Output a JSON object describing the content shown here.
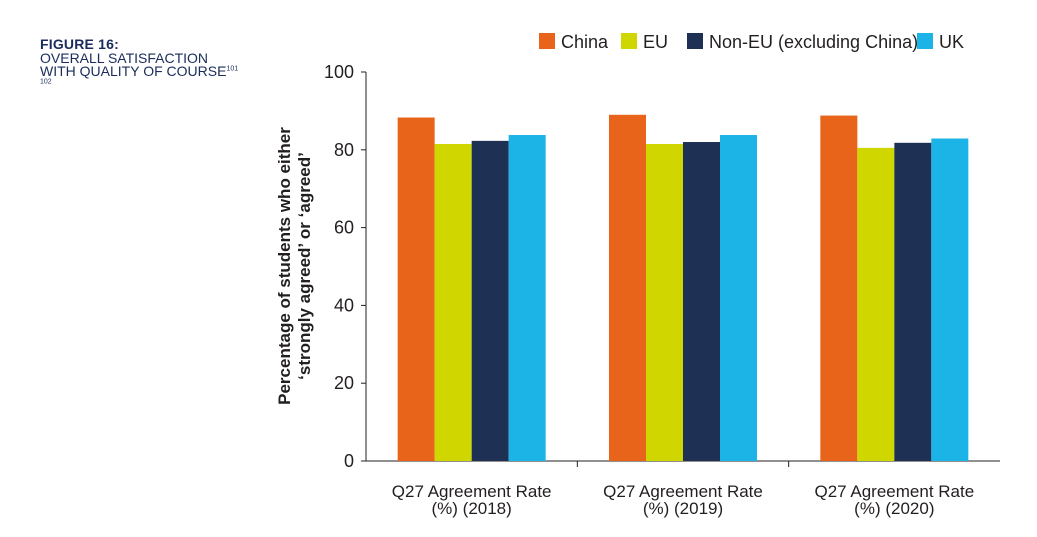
{
  "figure": {
    "label": "FIGURE 16:",
    "title": "OVERALL SATISFACTION WITH QUALITY OF COURSE",
    "footnotes": "101 102"
  },
  "colors": {
    "China": "#e8641b",
    "EU": "#cfd600",
    "Non-EU (excluding China)": "#1f3055",
    "UK": "#1cb4e6"
  },
  "chart_data": {
    "type": "bar",
    "title": "",
    "xlabel": "",
    "ylabel_lines": [
      "Percentage of students who either",
      "‘strongly agreed’ or ‘agreed’"
    ],
    "categories": [
      [
        "Q27 Agreement Rate",
        "(%) (2018)"
      ],
      [
        "Q27 Agreement Rate",
        "(%) (2019)"
      ],
      [
        "Q27 Agreement Rate",
        "(%) (2020)"
      ]
    ],
    "series": [
      {
        "name": "China",
        "values": [
          88.3,
          89.0,
          88.8
        ]
      },
      {
        "name": "EU",
        "values": [
          81.5,
          81.5,
          80.5
        ]
      },
      {
        "name": "Non-EU (excluding China)",
        "values": [
          82.3,
          82.0,
          81.8
        ]
      },
      {
        "name": "UK",
        "values": [
          83.8,
          83.8,
          82.9
        ]
      }
    ],
    "ylim": [
      0,
      100
    ],
    "yticks": [
      0,
      20,
      40,
      60,
      80,
      100
    ],
    "grid": false,
    "legend_position": "top"
  }
}
